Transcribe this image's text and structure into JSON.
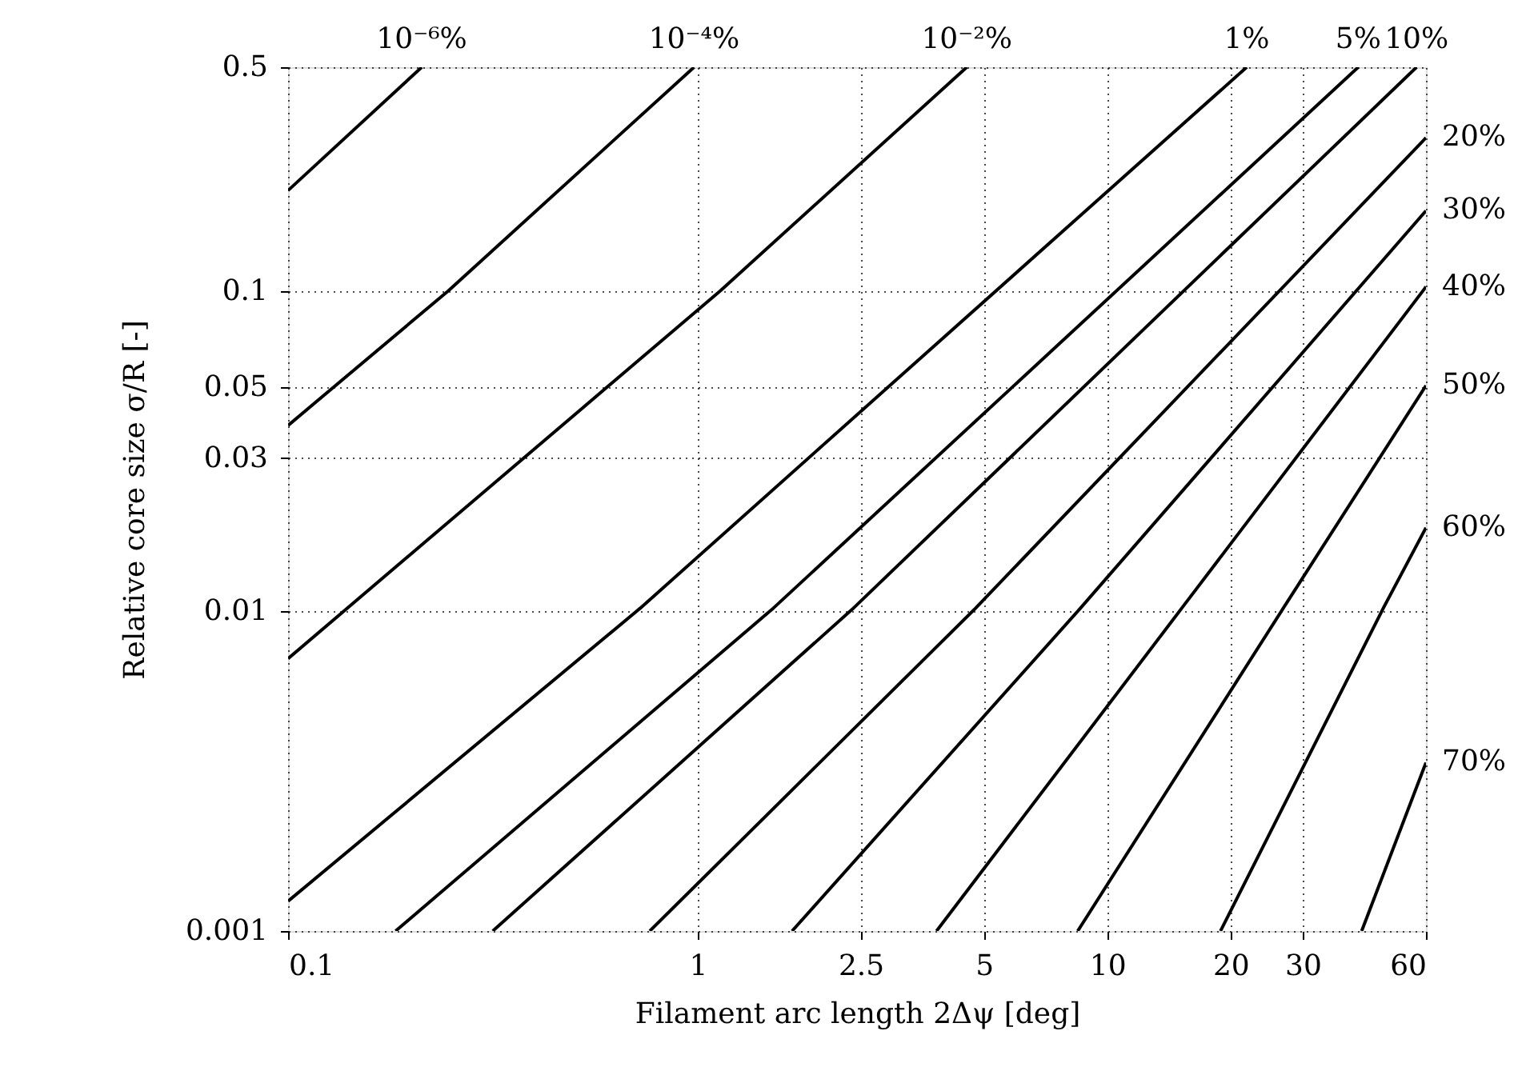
{
  "chart_data": {
    "type": "line",
    "xlabel": "Filament arc length 2Δψ [deg]",
    "ylabel": "Relative core size σ/R [-]",
    "log": "xy",
    "grid": true,
    "legend": false,
    "line_style": "solid",
    "marker": "none",
    "xlim": [
      0.1,
      60
    ],
    "xticks": [
      0.1,
      1,
      2.5,
      5,
      10,
      20,
      30,
      60
    ],
    "ylim": [
      0.001,
      0.5
    ],
    "yticks": [
      0.001,
      0.01,
      0.03,
      0.05,
      0.1,
      0.5
    ],
    "series": [
      {
        "name": "10⁻⁶%",
        "color": "#000000",
        "x": [
          0.1,
          0.212
        ],
        "values": [
          0.206,
          0.5
        ]
      },
      {
        "name": "10⁻⁴%",
        "color": "#000000",
        "x": [
          0.1,
          0.246,
          0.98
        ],
        "values": [
          0.038,
          0.1,
          0.5
        ]
      },
      {
        "name": "10⁻²%",
        "color": "#000000",
        "x": [
          0.1,
          1.135,
          4.54
        ],
        "values": [
          0.0071,
          0.1,
          0.5
        ]
      },
      {
        "name": "1%",
        "color": "#000000",
        "x": [
          0.1,
          0.724,
          21.9
        ],
        "values": [
          0.00124,
          0.0102,
          0.5
        ]
      },
      {
        "name": "5%",
        "color": "#000000",
        "x": [
          0.183,
          1.53,
          41.0
        ],
        "values": [
          0.001,
          0.0102,
          0.5
        ]
      },
      {
        "name": "10%",
        "color": "#000000",
        "x": [
          0.316,
          2.4,
          56.9
        ],
        "values": [
          0.001,
          0.0102,
          0.5
        ]
      },
      {
        "name": "20%",
        "color": "#000000",
        "x": [
          0.764,
          4.77,
          60
        ],
        "values": [
          0.001,
          0.0102,
          0.301
        ]
      },
      {
        "name": "30%",
        "color": "#000000",
        "x": [
          1.7,
          8.6,
          60
        ],
        "values": [
          0.001,
          0.0102,
          0.178
        ]
      },
      {
        "name": "40%",
        "color": "#000000",
        "x": [
          3.83,
          15.2,
          60
        ],
        "values": [
          0.001,
          0.0102,
          0.103
        ]
      },
      {
        "name": "50%",
        "color": "#000000",
        "x": [
          8.47,
          26.9,
          60
        ],
        "values": [
          0.001,
          0.0102,
          0.0506
        ]
      },
      {
        "name": "60%",
        "color": "#000000",
        "x": [
          18.9,
          47.2,
          60
        ],
        "values": [
          0.001,
          0.0102,
          0.0182
        ]
      },
      {
        "name": "70%",
        "color": "#000000",
        "x": [
          41.8,
          60
        ],
        "values": [
          0.001,
          0.00336
        ]
      }
    ]
  }
}
